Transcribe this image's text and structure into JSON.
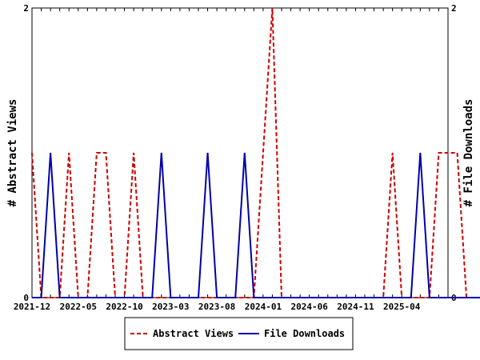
{
  "chart_data": {
    "type": "line",
    "ylabel_left": "# Abstract Views",
    "ylabel_right": "# File Downloads",
    "ylim_left": [
      0,
      2
    ],
    "ylim_right": [
      0,
      2
    ],
    "y_ticks_left": [
      "0",
      "2"
    ],
    "y_ticks_right": [
      "0",
      "2"
    ],
    "x_tick_labels": [
      "2021-12",
      "2022-05",
      "2022-10",
      "2023-03",
      "2023-08",
      "2024-01",
      "2024-06",
      "2024-11",
      "2025-04"
    ],
    "x_start": "2021-12",
    "x_end": "2025-09",
    "grid": false,
    "legend_position": "bottom",
    "series": [
      {
        "name": "Abstract Views",
        "color": "#cc0000",
        "dashed": true,
        "axis": "left",
        "values": [
          1,
          0,
          0,
          0,
          1,
          0,
          0,
          1,
          1,
          0,
          0,
          1,
          0,
          0,
          0,
          0,
          0,
          0,
          0,
          0,
          0,
          0,
          0,
          0,
          0,
          1,
          2,
          0,
          0,
          0,
          0,
          0,
          0,
          0,
          0,
          0,
          0,
          0,
          0,
          1,
          0,
          0,
          0,
          0,
          1,
          1,
          1,
          0,
          0,
          0,
          1,
          0,
          0,
          0
        ]
      },
      {
        "name": "File Downloads",
        "color": "#0000aa",
        "dashed": false,
        "axis": "right",
        "values": [
          0,
          0,
          1,
          0,
          0,
          0,
          0,
          0,
          0,
          0,
          0,
          0,
          0,
          0,
          1,
          0,
          0,
          0,
          0,
          1,
          0,
          0,
          0,
          1,
          0,
          0,
          0,
          0,
          0,
          0,
          0,
          0,
          0,
          0,
          0,
          0,
          0,
          0,
          0,
          0,
          0,
          0,
          1,
          0,
          0,
          0,
          0,
          0,
          0,
          0,
          0,
          0,
          0,
          0
        ]
      }
    ]
  }
}
